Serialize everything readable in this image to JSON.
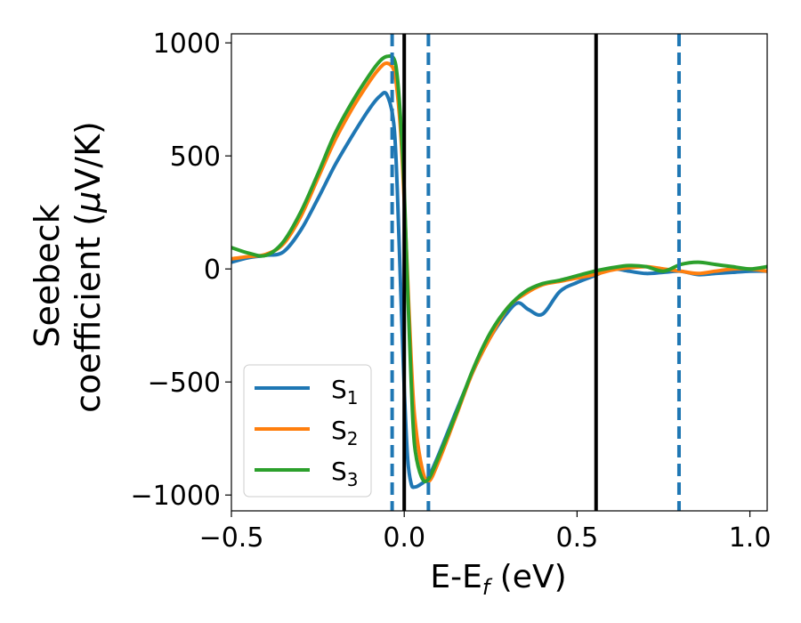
{
  "chart_data": {
    "type": "line",
    "xlabel_main": "E-E",
    "xlabel_sub": "f",
    "xlabel_unit": " (eV)",
    "ylabel_line1": "Seebeck",
    "ylabel_line2_text": "coefficient  (",
    "ylabel_mu": "μ",
    "ylabel_line2_unit": "V/K)",
    "xlim": [
      -0.5,
      1.05
    ],
    "ylim": [
      -1070,
      1040
    ],
    "xticks": [
      -0.5,
      0.0,
      0.5,
      1.0
    ],
    "xtick_labels": [
      "−0.5",
      "0.0",
      "0.5",
      "1.0"
    ],
    "yticks": [
      1000,
      500,
      0,
      -500,
      -1000
    ],
    "ytick_labels": [
      "1000",
      "500",
      "0",
      "−500",
      "−1000"
    ],
    "grid": false,
    "legend_position": "lower-left",
    "vlines_solid": [
      0.0,
      0.555
    ],
    "vlines_dashed": [
      -0.035,
      0.07,
      0.795
    ],
    "vline_solid_color": "#000000",
    "vline_dashed_color": "#1f77b4",
    "series": [
      {
        "name_main": "S",
        "name_sub": "1",
        "color": "#1f77b4",
        "x": [
          -0.5,
          -0.45,
          -0.4,
          -0.35,
          -0.3,
          -0.25,
          -0.2,
          -0.15,
          -0.1,
          -0.07,
          -0.05,
          -0.03,
          -0.02,
          -0.01,
          0.0,
          0.01,
          0.02,
          0.03,
          0.05,
          0.07,
          0.1,
          0.15,
          0.2,
          0.25,
          0.3,
          0.33,
          0.36,
          0.4,
          0.45,
          0.5,
          0.55,
          0.6,
          0.65,
          0.7,
          0.75,
          0.8,
          0.85,
          0.9,
          0.95,
          1.0,
          1.05
        ],
        "y": [
          30,
          50,
          60,
          75,
          170,
          310,
          460,
          590,
          710,
          765,
          770,
          640,
          350,
          -100,
          -530,
          -840,
          -950,
          -965,
          -950,
          -920,
          -820,
          -630,
          -450,
          -300,
          -190,
          -150,
          -180,
          -200,
          -100,
          -60,
          -30,
          0,
          -10,
          -20,
          -15,
          -10,
          -25,
          -20,
          -15,
          -10,
          -10
        ]
      },
      {
        "name_main": "S",
        "name_sub": "2",
        "color": "#ff7f0e",
        "x": [
          -0.5,
          -0.45,
          -0.4,
          -0.35,
          -0.3,
          -0.25,
          -0.2,
          -0.15,
          -0.1,
          -0.07,
          -0.05,
          -0.03,
          -0.02,
          -0.01,
          0.0,
          0.01,
          0.02,
          0.03,
          0.05,
          0.07,
          0.1,
          0.15,
          0.2,
          0.25,
          0.3,
          0.35,
          0.4,
          0.45,
          0.5,
          0.55,
          0.6,
          0.65,
          0.7,
          0.75,
          0.8,
          0.85,
          0.9,
          0.95,
          1.0,
          1.05
        ],
        "y": [
          45,
          55,
          65,
          110,
          230,
          400,
          570,
          710,
          830,
          890,
          910,
          880,
          780,
          600,
          300,
          -50,
          -400,
          -650,
          -870,
          -940,
          -850,
          -650,
          -450,
          -300,
          -170,
          -110,
          -70,
          -55,
          -40,
          -25,
          -5,
          5,
          10,
          0,
          -10,
          -20,
          -10,
          0,
          0,
          -10
        ]
      },
      {
        "name_main": "S",
        "name_sub": "3",
        "color": "#2ca02c",
        "x": [
          -0.5,
          -0.45,
          -0.4,
          -0.35,
          -0.3,
          -0.25,
          -0.2,
          -0.15,
          -0.1,
          -0.07,
          -0.05,
          -0.03,
          -0.02,
          -0.01,
          0.0,
          0.01,
          0.02,
          0.03,
          0.05,
          0.07,
          0.1,
          0.15,
          0.2,
          0.25,
          0.3,
          0.35,
          0.4,
          0.45,
          0.5,
          0.55,
          0.6,
          0.65,
          0.7,
          0.75,
          0.8,
          0.85,
          0.9,
          0.95,
          1.0,
          1.05
        ],
        "y": [
          95,
          70,
          60,
          120,
          250,
          420,
          600,
          740,
          860,
          920,
          940,
          930,
          850,
          650,
          350,
          -100,
          -500,
          -780,
          -920,
          -930,
          -830,
          -640,
          -440,
          -280,
          -170,
          -100,
          -65,
          -50,
          -30,
          -10,
          5,
          15,
          10,
          -10,
          20,
          30,
          20,
          10,
          0,
          10
        ]
      }
    ]
  }
}
